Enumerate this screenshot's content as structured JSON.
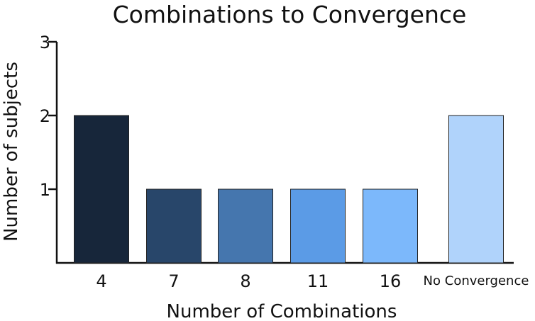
{
  "chart_data": {
    "type": "bar",
    "title": "Combinations to Convergence",
    "xlabel": "Number of Combinations",
    "ylabel": "Number of subjects",
    "categories": [
      "4",
      "7",
      "8",
      "11",
      "16",
      "No Convergence"
    ],
    "values": [
      2,
      1,
      1,
      1,
      1,
      2
    ],
    "ylim": [
      0,
      3
    ],
    "yticks": [
      1,
      2,
      3
    ],
    "colors": [
      "#17263a",
      "#28466a",
      "#4576ae",
      "#5b9be6",
      "#7cb8fb",
      "#b0d3fb"
    ],
    "grid": false,
    "legend": "none"
  }
}
